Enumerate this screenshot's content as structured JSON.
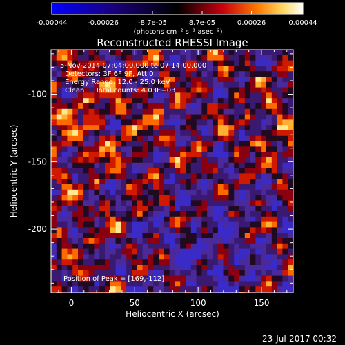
{
  "colorbar": {
    "tick_labels": [
      "-0.00044",
      "-0.00026",
      "-8.7e-05",
      "8.7e-05",
      "0.00026",
      "0.00044"
    ],
    "tick_values": [
      -0.00044,
      -0.00026,
      -8.7e-05,
      8.7e-05,
      0.00026,
      0.00044
    ],
    "units": "(photons cm⁻² s⁻¹ asec⁻²)",
    "min": -0.00044,
    "max": 0.00044
  },
  "plot": {
    "title": "Reconstructed RHESSI Image",
    "xlabel": "Heliocentric X (arcsec)",
    "ylabel": "Heliocentric Y (arcsec)",
    "x_ticks": [
      "0",
      "50",
      "100",
      "150"
    ],
    "x_tick_values": [
      0,
      50,
      100,
      150
    ],
    "y_ticks": [
      "-100",
      "-150",
      "-200"
    ],
    "y_tick_values": [
      -100,
      -150,
      -200
    ],
    "xlim": [
      -16,
      175
    ],
    "ylim": [
      -247,
      -67
    ]
  },
  "annotations": {
    "time_range": "5-Nov-2014 07:04:00.000 to 07:14:00.000",
    "detectors": "Detectors: 3F 6F 9F, Att 0",
    "energy": "Energy Range: 12.0 - 25.0 keV",
    "clean": "Clean     Total counts: 4.03E+03",
    "peak": "Position of Peak = [169,-112]"
  },
  "footer": {
    "timestamp": "23-Jul-2017 00:32"
  },
  "colors": {
    "background": "#000000",
    "foreground": "#ffffff"
  }
}
